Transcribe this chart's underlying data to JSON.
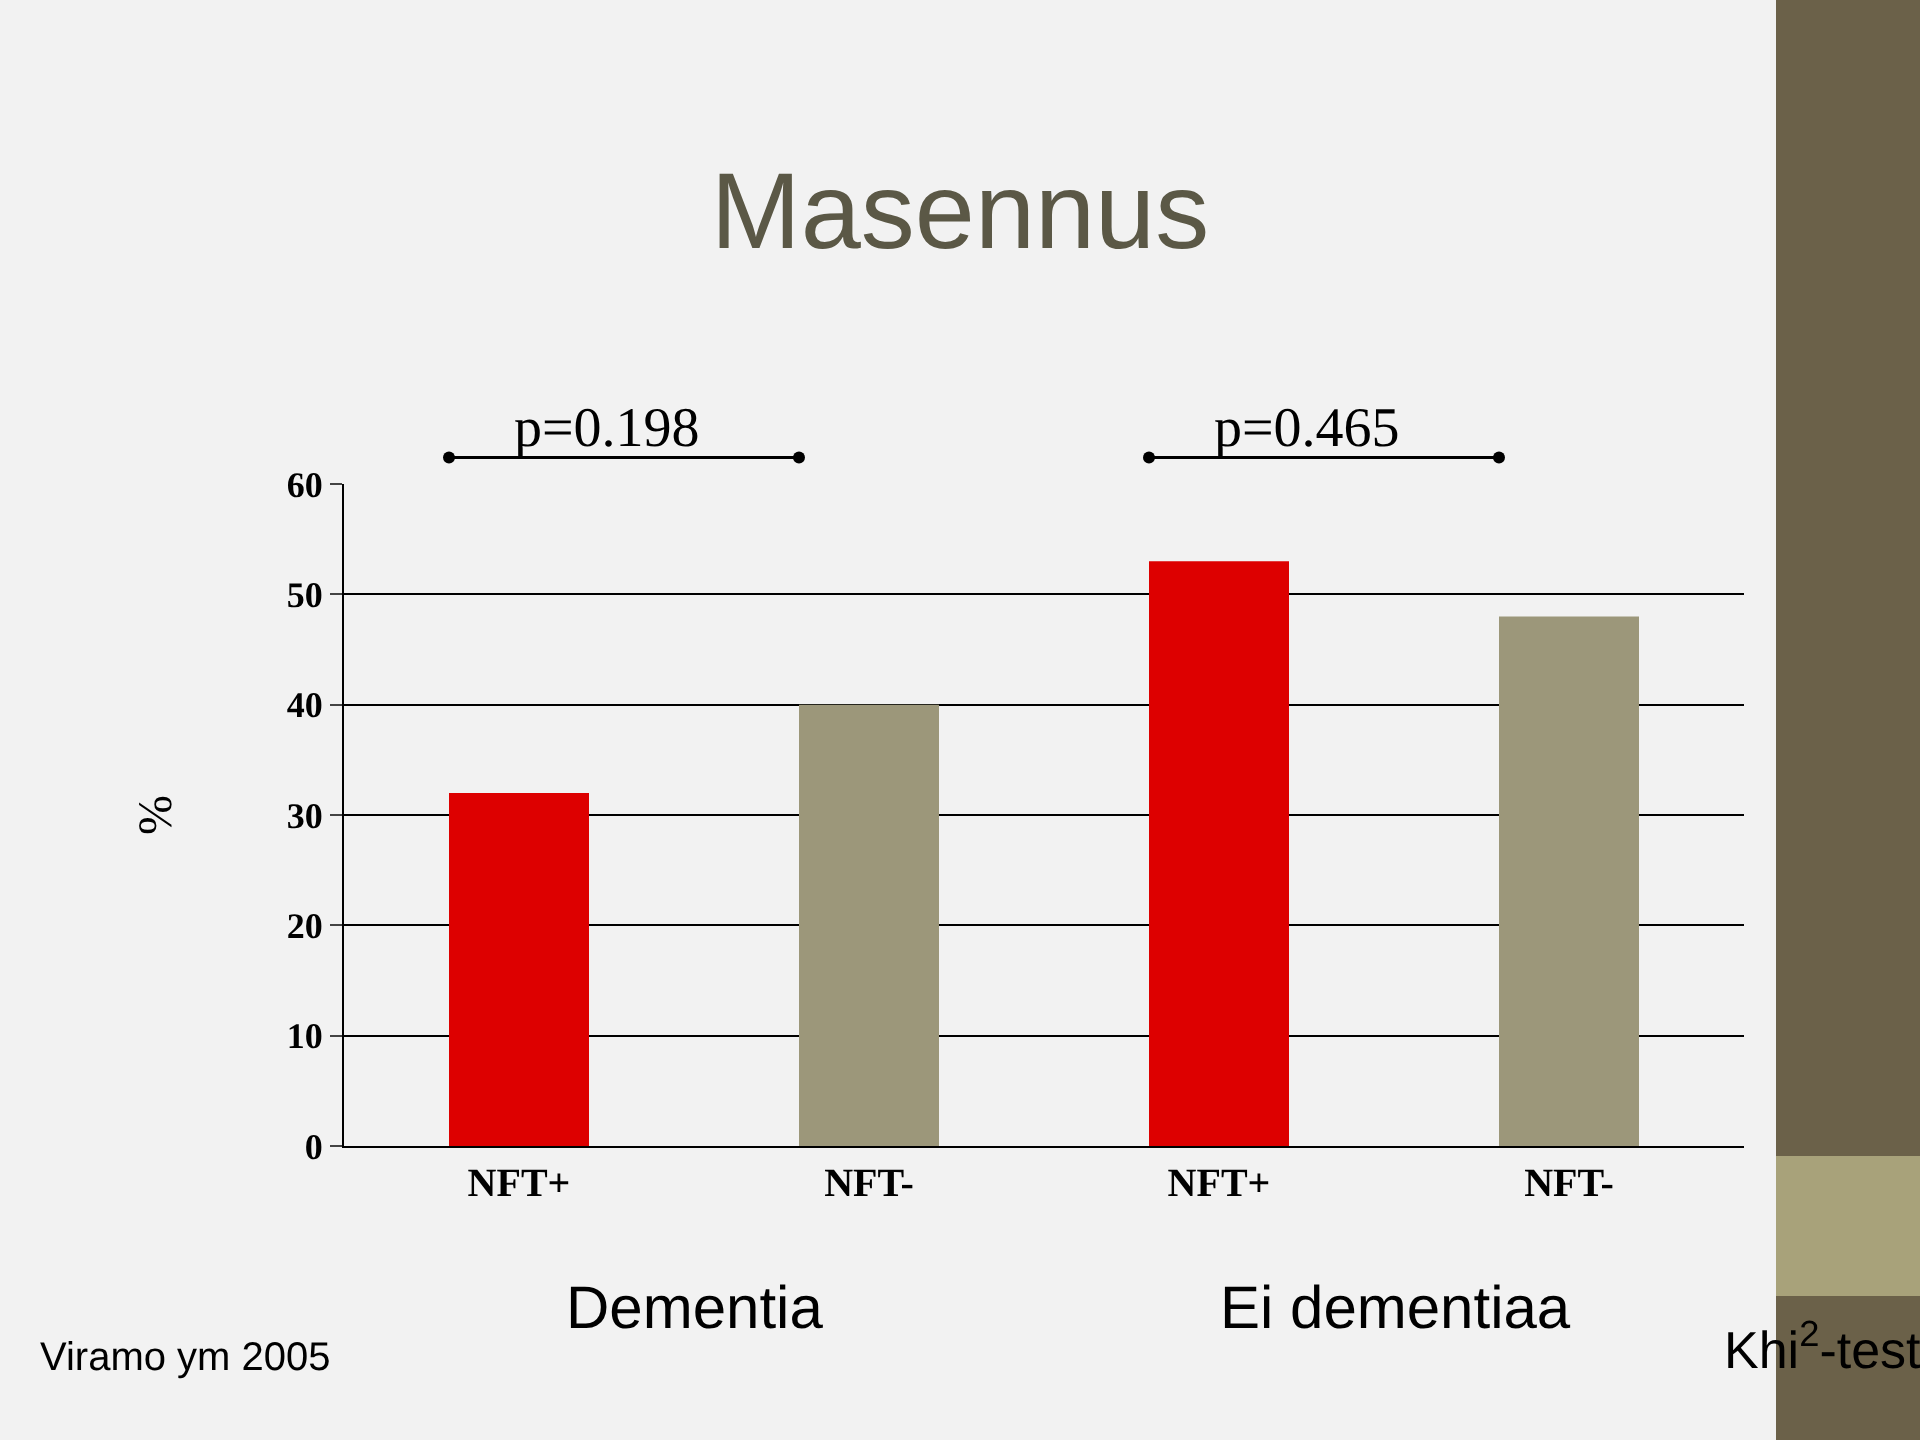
{
  "chart_data": {
    "type": "bar",
    "title": "Masennus",
    "ylabel": "%",
    "categories": [
      "NFT+",
      "NFT-",
      "NFT+",
      "NFT-"
    ],
    "values": [
      32,
      40,
      53,
      48
    ],
    "colors": [
      "#dd0000",
      "#9c977a",
      "#dd0000",
      "#9c977a"
    ],
    "ylim": [
      0,
      60
    ],
    "yticks": [
      0,
      10,
      20,
      30,
      40,
      50,
      60
    ],
    "grid": "y",
    "annotations": [
      "p=0.198",
      "p=0.465",
      "Dementia",
      "Ei dementiaa",
      "Viramo ym 2005",
      "Khi$^{2}$-test"
    ]
  }
}
